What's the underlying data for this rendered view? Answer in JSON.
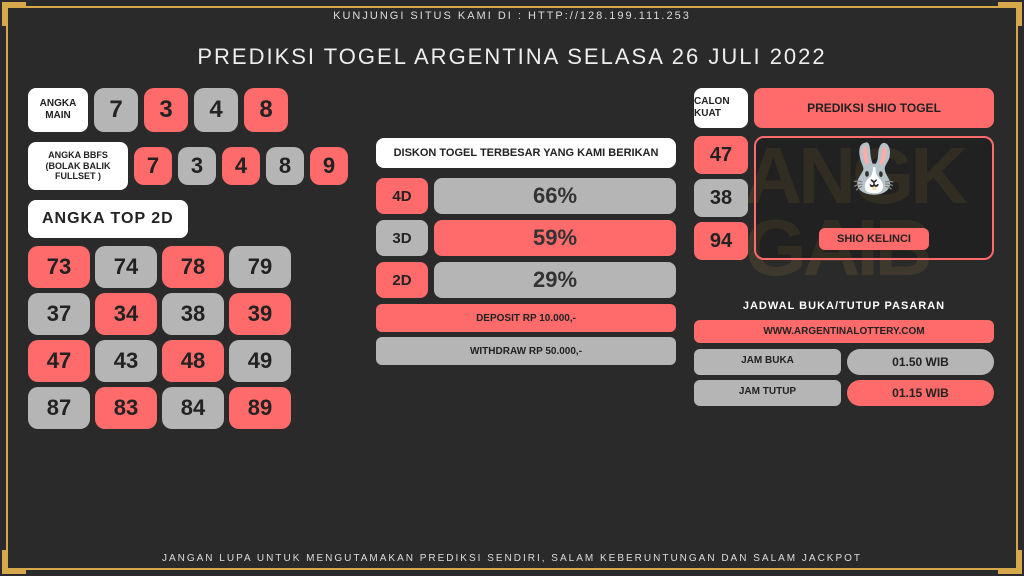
{
  "top_text": "KUNJUNGI SITUS KAMI DI : HTTP://128.199.111.253",
  "title": "PREDIKSI TOGEL ARGENTINA SELASA 26 JULI 2022",
  "footer": "JANGAN LUPA UNTUK MENGUTAMAKAN PREDIKSI SENDIRI, SALAM KEBERUNTUNGAN DAN SALAM JACKPOT",
  "angka_main": {
    "label": "ANGKA MAIN",
    "nums": [
      {
        "v": "7",
        "c": "gray"
      },
      {
        "v": "3",
        "c": "red"
      },
      {
        "v": "4",
        "c": "gray"
      },
      {
        "v": "8",
        "c": "red"
      }
    ]
  },
  "angka_bbfs": {
    "label": "ANGKA BBFS (BOLAK BALIK FULLSET )",
    "nums": [
      {
        "v": "7",
        "c": "red"
      },
      {
        "v": "3",
        "c": "gray"
      },
      {
        "v": "4",
        "c": "red"
      },
      {
        "v": "8",
        "c": "gray"
      },
      {
        "v": "9",
        "c": "red"
      }
    ]
  },
  "top2d": {
    "label": "ANGKA TOP 2D",
    "nums": [
      {
        "v": "73",
        "c": "red"
      },
      {
        "v": "74",
        "c": "gray"
      },
      {
        "v": "78",
        "c": "red"
      },
      {
        "v": "79",
        "c": "gray"
      },
      {
        "v": "37",
        "c": "gray"
      },
      {
        "v": "34",
        "c": "red"
      },
      {
        "v": "38",
        "c": "gray"
      },
      {
        "v": "39",
        "c": "red"
      },
      {
        "v": "47",
        "c": "red"
      },
      {
        "v": "43",
        "c": "gray"
      },
      {
        "v": "48",
        "c": "red"
      },
      {
        "v": "49",
        "c": "gray"
      },
      {
        "v": "87",
        "c": "gray"
      },
      {
        "v": "83",
        "c": "red"
      },
      {
        "v": "84",
        "c": "gray"
      },
      {
        "v": "89",
        "c": "red"
      }
    ]
  },
  "diskon": {
    "label": "DISKON TOGEL TERBESAR YANG KAMI BERIKAN",
    "rows": [
      {
        "k": "4D",
        "kc": "red",
        "v": "66%",
        "vc": "gray"
      },
      {
        "k": "3D",
        "kc": "gray",
        "v": "59%",
        "vc": "red"
      },
      {
        "k": "2D",
        "kc": "red",
        "v": "29%",
        "vc": "gray"
      }
    ],
    "deposit": "DEPOSIT RP 10.000,-",
    "withdraw": "WITHDRAW RP 50.000,-"
  },
  "calon": {
    "label": "CALON KUAT",
    "title": "PREDIKSI SHIO TOGEL",
    "nums": [
      {
        "v": "47",
        "c": "red"
      },
      {
        "v": "38",
        "c": "gray"
      },
      {
        "v": "94",
        "c": "red"
      }
    ],
    "shio": "SHIO KELINCI"
  },
  "jadwal": {
    "title": "JADWAL BUKA/TUTUP PASARAN",
    "link": "WWW.ARGENTINALOTTERY.COM",
    "rows": [
      {
        "k": "JAM BUKA",
        "v": "01.50 WIB",
        "vc": "gray"
      },
      {
        "k": "JAM TUTUP",
        "v": "01.15 WIB",
        "vc": "red"
      }
    ]
  },
  "colors": {
    "gray": "#b5b5b5",
    "red": "#ff6b6b"
  }
}
